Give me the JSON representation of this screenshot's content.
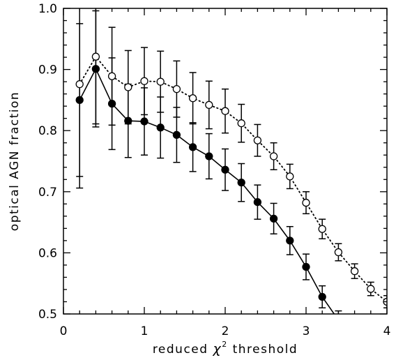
{
  "chart_data": {
    "type": "line",
    "xlabel": "reduced χ² threshold",
    "xlabel_parts": {
      "pre": "reduced ",
      "sym": "χ",
      "sup": "2",
      "post": " threshold"
    },
    "ylabel": "optical AGN fraction",
    "xlim": [
      0,
      4
    ],
    "ylim": [
      0.5,
      1.0
    ],
    "x_ticks": [
      0,
      1,
      2,
      3,
      4
    ],
    "x_tick_labels": [
      "0",
      "1",
      "2",
      "3",
      "4"
    ],
    "y_ticks": [
      0.5,
      0.6,
      0.7,
      0.8,
      0.9,
      1.0
    ],
    "y_tick_labels": [
      "0.5",
      "0.6",
      "0.7",
      "0.8",
      "0.9",
      "1.0"
    ],
    "grid": false,
    "series": [
      {
        "marker": "filled-circle",
        "linestyle": "solid",
        "color": "#000000",
        "x": [
          0.2,
          0.4,
          0.6,
          0.8,
          1.0,
          1.2,
          1.4,
          1.6,
          1.8,
          2.0,
          2.2,
          2.4,
          2.6,
          2.8,
          3.0,
          3.2,
          3.4
        ],
        "y": [
          0.85,
          0.901,
          0.844,
          0.816,
          0.815,
          0.805,
          0.793,
          0.773,
          0.758,
          0.736,
          0.715,
          0.683,
          0.656,
          0.62,
          0.577,
          0.528,
          0.49
        ],
        "err": [
          0.125,
          0.095,
          0.075,
          0.06,
          0.055,
          0.05,
          0.045,
          0.04,
          0.037,
          0.034,
          0.031,
          0.028,
          0.025,
          0.023,
          0.021,
          0.018,
          0.015
        ]
      },
      {
        "marker": "open-circle",
        "linestyle": "dotted",
        "color": "#000000",
        "x": [
          0.2,
          0.4,
          0.6,
          0.8,
          1.0,
          1.2,
          1.4,
          1.6,
          1.8,
          2.0,
          2.2,
          2.4,
          2.6,
          2.8,
          3.0,
          3.2,
          3.4,
          3.6,
          3.8,
          4.0
        ],
        "y": [
          0.876,
          0.921,
          0.889,
          0.871,
          0.881,
          0.88,
          0.868,
          0.853,
          0.842,
          0.832,
          0.812,
          0.784,
          0.758,
          0.725,
          0.682,
          0.639,
          0.601,
          0.57,
          0.541,
          0.52
        ],
        "err": [
          0.17,
          0.11,
          0.08,
          0.06,
          0.055,
          0.05,
          0.046,
          0.042,
          0.039,
          0.036,
          0.031,
          0.026,
          0.022,
          0.02,
          0.018,
          0.016,
          0.014,
          0.012,
          0.011,
          0.01
        ]
      }
    ]
  }
}
